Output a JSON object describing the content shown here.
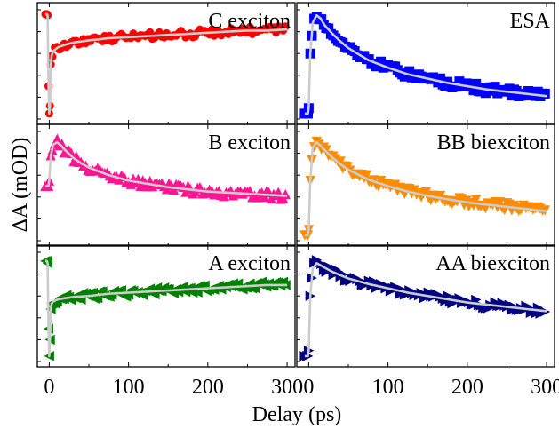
{
  "chart_data": {
    "type": "line",
    "ylabel": "ΔA (mOD)",
    "xlabel": "Delay (ps)",
    "grid": false,
    "x_ticks": [
      0,
      100,
      200,
      300
    ],
    "panels": [
      {
        "label": "C exciton",
        "color": "#ff0000",
        "marker": "circle",
        "xlim": [
          -15,
          310
        ],
        "ylim": [
          0,
          1
        ],
        "series": [
          {
            "x": [
              -5,
              -3,
              -2,
              -1,
              0,
              1,
              2,
              3,
              5,
              8,
              12,
              20,
              30,
              50,
              75,
              100,
              125,
              150,
              175,
              200,
              225,
              250,
              275,
              300
            ],
            "y": [
              0.96,
              0.96,
              0.95,
              0.3,
              0.05,
              0.12,
              0.5,
              0.58,
              0.62,
              0.64,
              0.66,
              0.68,
              0.7,
              0.72,
              0.74,
              0.75,
              0.76,
              0.77,
              0.78,
              0.79,
              0.8,
              0.81,
              0.81,
              0.82
            ]
          }
        ]
      },
      {
        "label": "ESA",
        "color": "#0000ff",
        "marker": "square",
        "xlim": [
          -15,
          310
        ],
        "ylim": [
          0,
          1
        ],
        "series": [
          {
            "x": [
              -5,
              -2,
              -1,
              0,
              2,
              5,
              10,
              15,
              20,
              30,
              40,
              50,
              75,
              100,
              125,
              150,
              175,
              200,
              225,
              250,
              275,
              300
            ],
            "y": [
              0.05,
              0.05,
              0.05,
              0.1,
              0.6,
              0.88,
              0.95,
              0.92,
              0.86,
              0.78,
              0.71,
              0.65,
              0.54,
              0.47,
              0.41,
              0.37,
              0.33,
              0.3,
              0.27,
              0.25,
              0.23,
              0.21
            ]
          }
        ]
      },
      {
        "label": "B exciton",
        "color": "#ff1493",
        "marker": "triangle-up",
        "xlim": [
          -15,
          310
        ],
        "ylim": [
          0,
          1
        ],
        "series": [
          {
            "x": [
              -5,
              -2,
              -1,
              0,
              2,
              5,
              10,
              15,
              20,
              30,
              40,
              50,
              75,
              100,
              125,
              150,
              175,
              200,
              225,
              250,
              275,
              300
            ],
            "y": [
              0.5,
              0.5,
              0.5,
              0.55,
              0.78,
              0.88,
              0.9,
              0.87,
              0.83,
              0.76,
              0.71,
              0.67,
              0.6,
              0.55,
              0.52,
              0.49,
              0.47,
              0.45,
              0.44,
              0.43,
              0.42,
              0.41
            ]
          }
        ]
      },
      {
        "label": "BB biexciton",
        "color": "#ff8c00",
        "marker": "triangle-down",
        "xlim": [
          -15,
          310
        ],
        "ylim": [
          0,
          1
        ],
        "series": [
          {
            "x": [
              -5,
              -2,
              -1,
              0,
              2,
              5,
              10,
              15,
              20,
              30,
              40,
              50,
              75,
              100,
              125,
              150,
              175,
              200,
              225,
              250,
              275,
              300
            ],
            "y": [
              0.05,
              0.05,
              0.05,
              0.1,
              0.55,
              0.85,
              0.9,
              0.87,
              0.83,
              0.76,
              0.7,
              0.65,
              0.56,
              0.5,
              0.45,
              0.41,
              0.38,
              0.35,
              0.33,
              0.31,
              0.29,
              0.27
            ]
          }
        ]
      },
      {
        "label": "A exciton",
        "color": "#008000",
        "marker": "triangle-left",
        "xlim": [
          -15,
          310
        ],
        "ylim": [
          0,
          1
        ],
        "series": [
          {
            "x": [
              -5,
              -3,
              -2,
              -1,
              0,
              1,
              2,
              3,
              5,
              8,
              12,
              20,
              30,
              50,
              75,
              100,
              125,
              150,
              175,
              200,
              225,
              250,
              275,
              300
            ],
            "y": [
              0.92,
              0.92,
              0.9,
              0.3,
              0.05,
              0.2,
              0.48,
              0.53,
              0.55,
              0.56,
              0.57,
              0.58,
              0.59,
              0.6,
              0.62,
              0.63,
              0.64,
              0.65,
              0.66,
              0.67,
              0.68,
              0.69,
              0.7,
              0.7
            ]
          }
        ]
      },
      {
        "label": "AA biexciton",
        "color": "#000080",
        "marker": "triangle-right",
        "xlim": [
          -15,
          310
        ],
        "ylim": [
          0,
          1
        ],
        "series": [
          {
            "x": [
              -5,
              -2,
              -1,
              0,
              2,
              5,
              10,
              15,
              20,
              30,
              40,
              50,
              75,
              100,
              125,
              150,
              175,
              200,
              225,
              250,
              275,
              300
            ],
            "y": [
              0.05,
              0.05,
              0.05,
              0.1,
              0.6,
              0.85,
              0.9,
              0.88,
              0.86,
              0.82,
              0.79,
              0.76,
              0.71,
              0.67,
              0.63,
              0.6,
              0.57,
              0.54,
              0.52,
              0.5,
              0.48,
              0.46
            ]
          }
        ]
      }
    ]
  }
}
